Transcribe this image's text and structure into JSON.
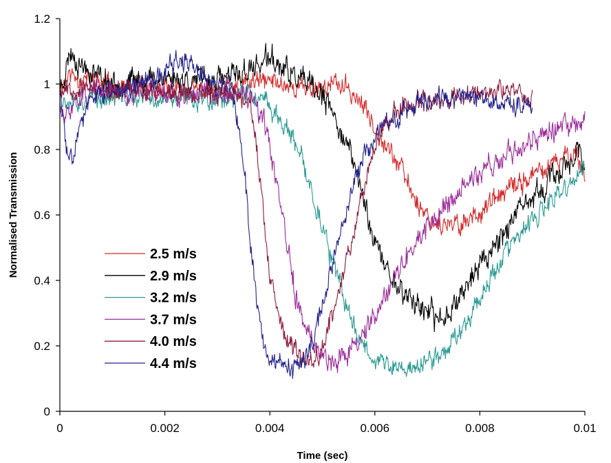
{
  "chart_data": {
    "type": "line",
    "title": "",
    "xlabel": "Time (sec)",
    "ylabel": "Normalised Transmission",
    "xlim": [
      0,
      0.01
    ],
    "ylim": [
      0,
      1.2
    ],
    "xticks": [
      0,
      0.002,
      0.004,
      0.006,
      0.008,
      0.01
    ],
    "xtick_labels": [
      "0",
      "0.002",
      "0.004",
      "0.006",
      "0.008",
      "0.01"
    ],
    "yticks": [
      0,
      0.2,
      0.4,
      0.6,
      0.8,
      1,
      1.2
    ],
    "ytick_labels": [
      "0",
      "0.2",
      "0.4",
      "0.6",
      "0.8",
      "1",
      "1.2"
    ],
    "grid": false,
    "legend_position": "lower-left",
    "series": [
      {
        "name": "2.5 m/s",
        "color": "#d42a2a",
        "noise": 0.022,
        "seed": 11,
        "points": [
          [
            0,
            1.0
          ],
          [
            0.0002,
            1.03
          ],
          [
            0.001,
            0.99
          ],
          [
            0.002,
            0.98
          ],
          [
            0.003,
            0.98
          ],
          [
            0.0035,
            1.0
          ],
          [
            0.004,
            1.01
          ],
          [
            0.0045,
            0.99
          ],
          [
            0.005,
            0.99
          ],
          [
            0.0053,
            1.0
          ],
          [
            0.0056,
            0.97
          ],
          [
            0.0059,
            0.9
          ],
          [
            0.0062,
            0.82
          ],
          [
            0.0065,
            0.74
          ],
          [
            0.0068,
            0.64
          ],
          [
            0.0071,
            0.58
          ],
          [
            0.0074,
            0.56
          ],
          [
            0.0077,
            0.58
          ],
          [
            0.008,
            0.61
          ],
          [
            0.0085,
            0.67
          ],
          [
            0.009,
            0.72
          ],
          [
            0.0095,
            0.76
          ],
          [
            0.0098,
            0.8
          ],
          [
            0.01,
            0.72
          ]
        ]
      },
      {
        "name": "2.9 m/s",
        "color": "#000000",
        "noise": 0.026,
        "seed": 23,
        "points": [
          [
            0,
            0.98
          ],
          [
            0.0002,
            1.1
          ],
          [
            0.0004,
            1.06
          ],
          [
            0.001,
            1.0
          ],
          [
            0.002,
            1.02
          ],
          [
            0.003,
            1.01
          ],
          [
            0.0036,
            1.04
          ],
          [
            0.004,
            1.08
          ],
          [
            0.0042,
            1.05
          ],
          [
            0.0046,
            1.01
          ],
          [
            0.005,
            0.96
          ],
          [
            0.0053,
            0.88
          ],
          [
            0.0056,
            0.76
          ],
          [
            0.0058,
            0.64
          ],
          [
            0.006,
            0.52
          ],
          [
            0.0062,
            0.44
          ],
          [
            0.0065,
            0.37
          ],
          [
            0.0068,
            0.33
          ],
          [
            0.0071,
            0.29
          ],
          [
            0.0073,
            0.28
          ],
          [
            0.0075,
            0.33
          ],
          [
            0.0078,
            0.4
          ],
          [
            0.0081,
            0.47
          ],
          [
            0.0085,
            0.56
          ],
          [
            0.009,
            0.65
          ],
          [
            0.0095,
            0.73
          ],
          [
            0.0099,
            0.8
          ],
          [
            0.01,
            0.7
          ]
        ]
      },
      {
        "name": "3.2 m/s",
        "color": "#2a9a92",
        "noise": 0.022,
        "seed": 37,
        "points": [
          [
            0,
            0.95
          ],
          [
            0.001,
            0.96
          ],
          [
            0.002,
            0.95
          ],
          [
            0.003,
            0.96
          ],
          [
            0.0036,
            0.97
          ],
          [
            0.004,
            0.93
          ],
          [
            0.0043,
            0.87
          ],
          [
            0.0046,
            0.77
          ],
          [
            0.0049,
            0.62
          ],
          [
            0.0052,
            0.45
          ],
          [
            0.0055,
            0.3
          ],
          [
            0.0058,
            0.2
          ],
          [
            0.0061,
            0.15
          ],
          [
            0.0064,
            0.13
          ],
          [
            0.0067,
            0.13
          ],
          [
            0.007,
            0.15
          ],
          [
            0.0073,
            0.18
          ],
          [
            0.0076,
            0.24
          ],
          [
            0.008,
            0.35
          ],
          [
            0.0085,
            0.49
          ],
          [
            0.009,
            0.58
          ],
          [
            0.0095,
            0.66
          ],
          [
            0.01,
            0.74
          ]
        ]
      },
      {
        "name": "3.7 m/s",
        "color": "#9a2a9a",
        "noise": 0.024,
        "seed": 51,
        "points": [
          [
            0,
            0.93
          ],
          [
            0.0001,
            0.88
          ],
          [
            0.0003,
            0.96
          ],
          [
            0.001,
            0.98
          ],
          [
            0.002,
            0.97
          ],
          [
            0.003,
            0.97
          ],
          [
            0.0036,
            0.96
          ],
          [
            0.0039,
            0.88
          ],
          [
            0.0041,
            0.72
          ],
          [
            0.0043,
            0.53
          ],
          [
            0.0045,
            0.35
          ],
          [
            0.0047,
            0.24
          ],
          [
            0.0049,
            0.18
          ],
          [
            0.0052,
            0.16
          ],
          [
            0.0055,
            0.18
          ],
          [
            0.0058,
            0.24
          ],
          [
            0.0061,
            0.33
          ],
          [
            0.0064,
            0.42
          ],
          [
            0.0068,
            0.52
          ],
          [
            0.0072,
            0.6
          ],
          [
            0.0077,
            0.69
          ],
          [
            0.0082,
            0.75
          ],
          [
            0.0087,
            0.8
          ],
          [
            0.0092,
            0.85
          ],
          [
            0.0097,
            0.87
          ],
          [
            0.01,
            0.88
          ]
        ]
      },
      {
        "name": "4.0 m/s",
        "color": "#8c1a3a",
        "noise": 0.02,
        "seed": 67,
        "points": [
          [
            0,
            0.99
          ],
          [
            0.001,
            0.98
          ],
          [
            0.002,
            0.98
          ],
          [
            0.0034,
            0.97
          ],
          [
            0.0036,
            0.95
          ],
          [
            0.0037,
            0.88
          ],
          [
            0.0038,
            0.72
          ],
          [
            0.0039,
            0.55
          ],
          [
            0.004,
            0.4
          ],
          [
            0.0042,
            0.27
          ],
          [
            0.0044,
            0.19
          ],
          [
            0.0046,
            0.16
          ],
          [
            0.0048,
            0.16
          ],
          [
            0.005,
            0.2
          ],
          [
            0.0052,
            0.3
          ],
          [
            0.0054,
            0.42
          ],
          [
            0.0056,
            0.55
          ],
          [
            0.0058,
            0.7
          ],
          [
            0.006,
            0.82
          ],
          [
            0.0062,
            0.88
          ],
          [
            0.0064,
            0.92
          ],
          [
            0.0068,
            0.95
          ],
          [
            0.0075,
            0.96
          ],
          [
            0.008,
            0.97
          ],
          [
            0.0085,
            0.98
          ],
          [
            0.009,
            0.96
          ]
        ]
      },
      {
        "name": "4.4 m/s",
        "color": "#22208a",
        "noise": 0.022,
        "seed": 83,
        "points": [
          [
            0,
            0.98
          ],
          [
            0.0001,
            0.84
          ],
          [
            0.00015,
            0.77
          ],
          [
            0.0002,
            0.78
          ],
          [
            0.0004,
            0.88
          ],
          [
            0.0006,
            0.95
          ],
          [
            0.001,
            0.98
          ],
          [
            0.002,
            1.03
          ],
          [
            0.0022,
            1.08
          ],
          [
            0.0026,
            1.04
          ],
          [
            0.003,
            1.0
          ],
          [
            0.0033,
            0.97
          ],
          [
            0.0034,
            0.88
          ],
          [
            0.0035,
            0.75
          ],
          [
            0.0036,
            0.58
          ],
          [
            0.0037,
            0.42
          ],
          [
            0.0038,
            0.28
          ],
          [
            0.0039,
            0.2
          ],
          [
            0.004,
            0.16
          ],
          [
            0.0042,
            0.13
          ],
          [
            0.0044,
            0.12
          ],
          [
            0.0046,
            0.14
          ],
          [
            0.0048,
            0.2
          ],
          [
            0.005,
            0.32
          ],
          [
            0.0052,
            0.46
          ],
          [
            0.0054,
            0.58
          ],
          [
            0.0056,
            0.7
          ],
          [
            0.0058,
            0.78
          ],
          [
            0.006,
            0.83
          ],
          [
            0.0062,
            0.87
          ],
          [
            0.0066,
            0.93
          ],
          [
            0.007,
            0.96
          ],
          [
            0.0075,
            0.96
          ],
          [
            0.008,
            0.96
          ],
          [
            0.0085,
            0.95
          ],
          [
            0.009,
            0.93
          ]
        ]
      }
    ]
  }
}
